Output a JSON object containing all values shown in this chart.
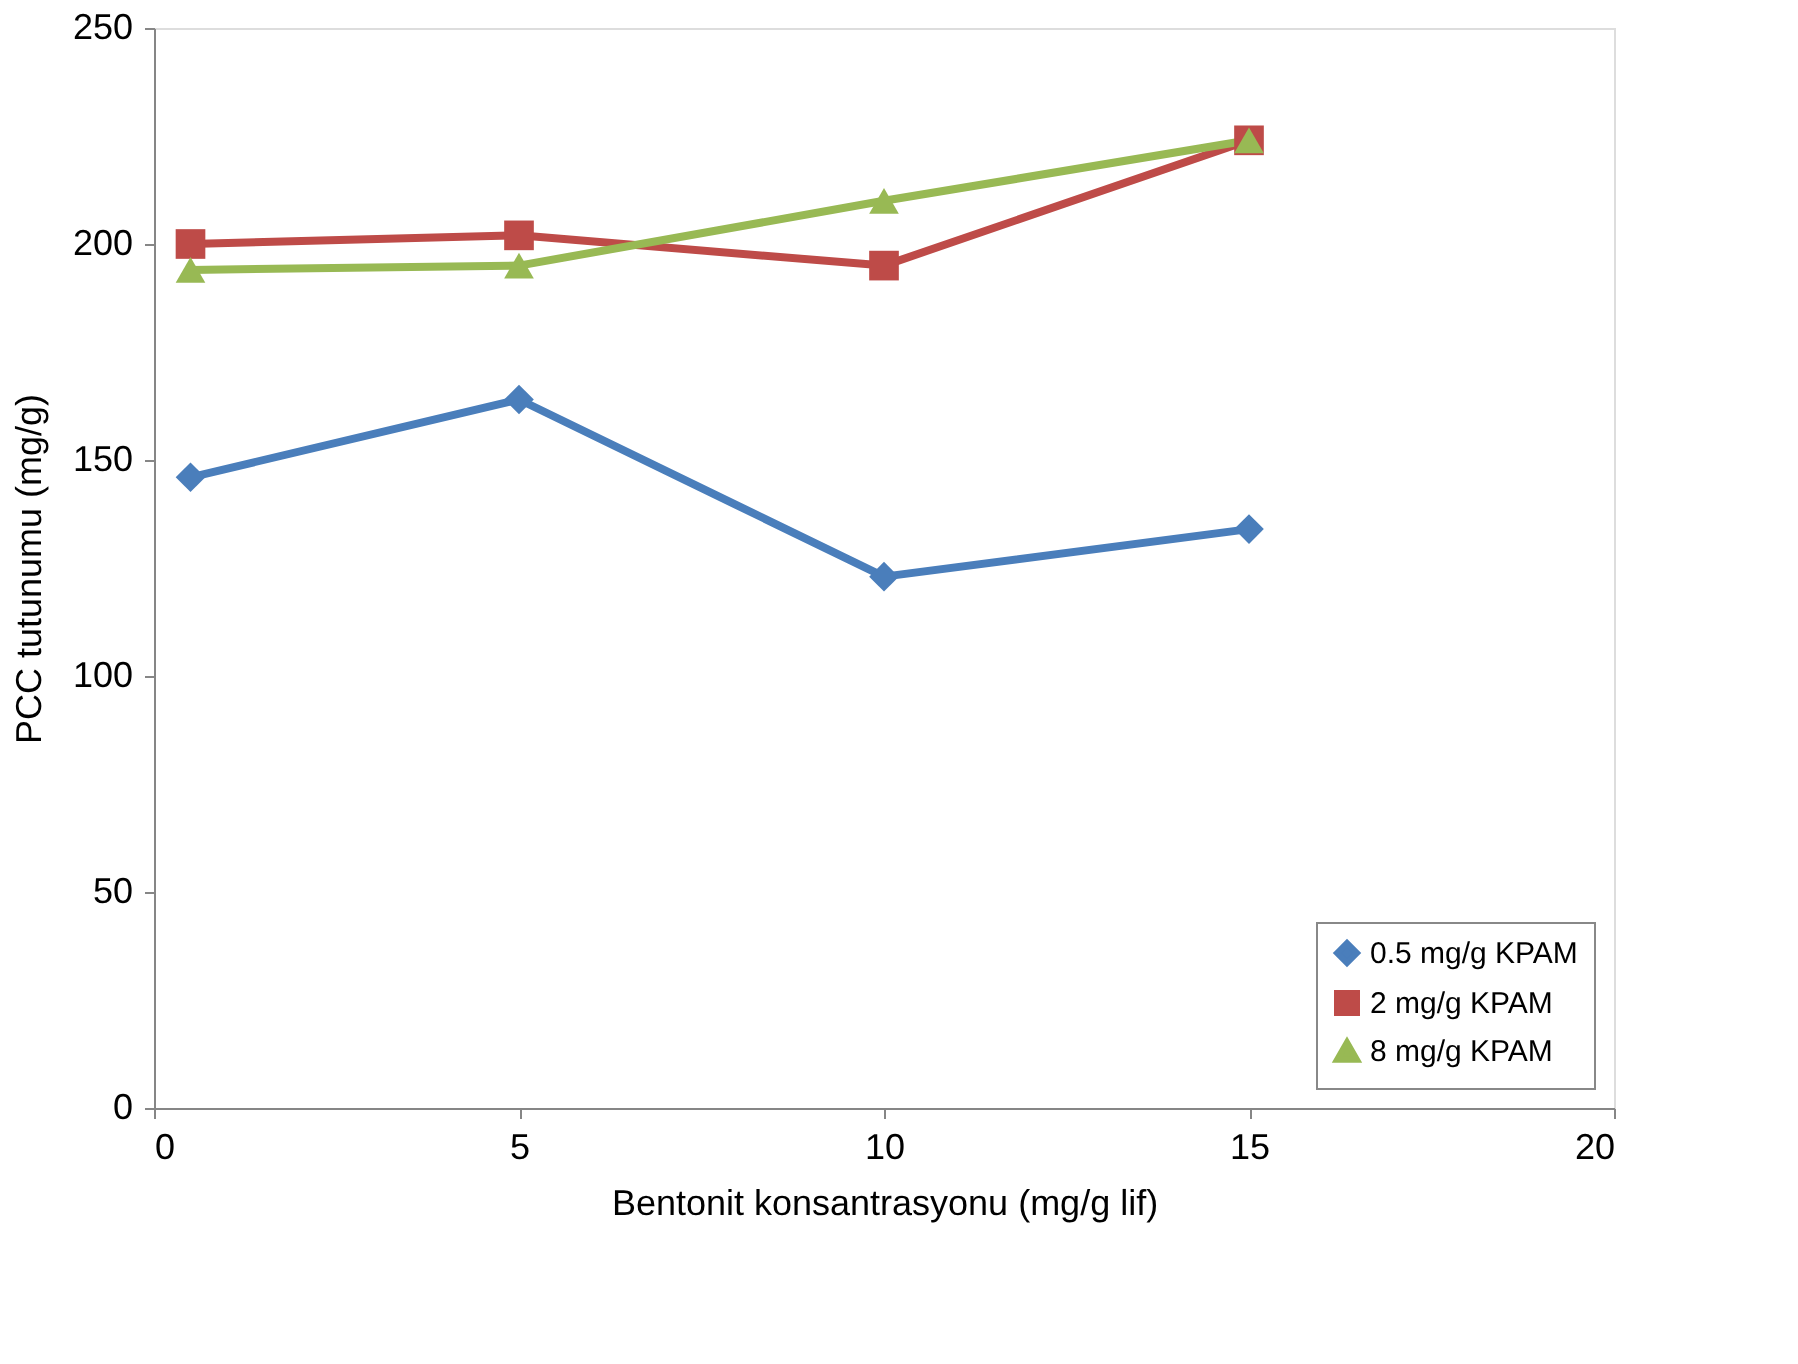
{
  "chart_data": {
    "type": "line",
    "xlabel": "Bentonit konsantrasyonu (mg/g lif)",
    "ylabel": "PCC tutunumu (mg/g)",
    "xlim": [
      0,
      20
    ],
    "xticks": [
      0,
      5,
      10,
      15,
      20
    ],
    "ylim": [
      0,
      250
    ],
    "yticks": [
      0,
      50,
      100,
      150,
      200,
      250
    ],
    "grid": false,
    "legend": "bottom right",
    "line_style": "solid",
    "x": [
      0.5,
      5,
      10,
      15
    ],
    "series": [
      {
        "name": "0.5 mg/g KPAM",
        "color": "#4a7ebb",
        "marker": "diamond",
        "values": [
          146,
          164,
          123,
          134
        ]
      },
      {
        "name": "2 mg/g KPAM",
        "color": "#be4b48",
        "marker": "square",
        "values": [
          200,
          202,
          195,
          224
        ]
      },
      {
        "name": "8 mg/g KPAM",
        "color": "#98b954",
        "marker": "triangle",
        "values": [
          194,
          195,
          210,
          224
        ]
      }
    ]
  }
}
